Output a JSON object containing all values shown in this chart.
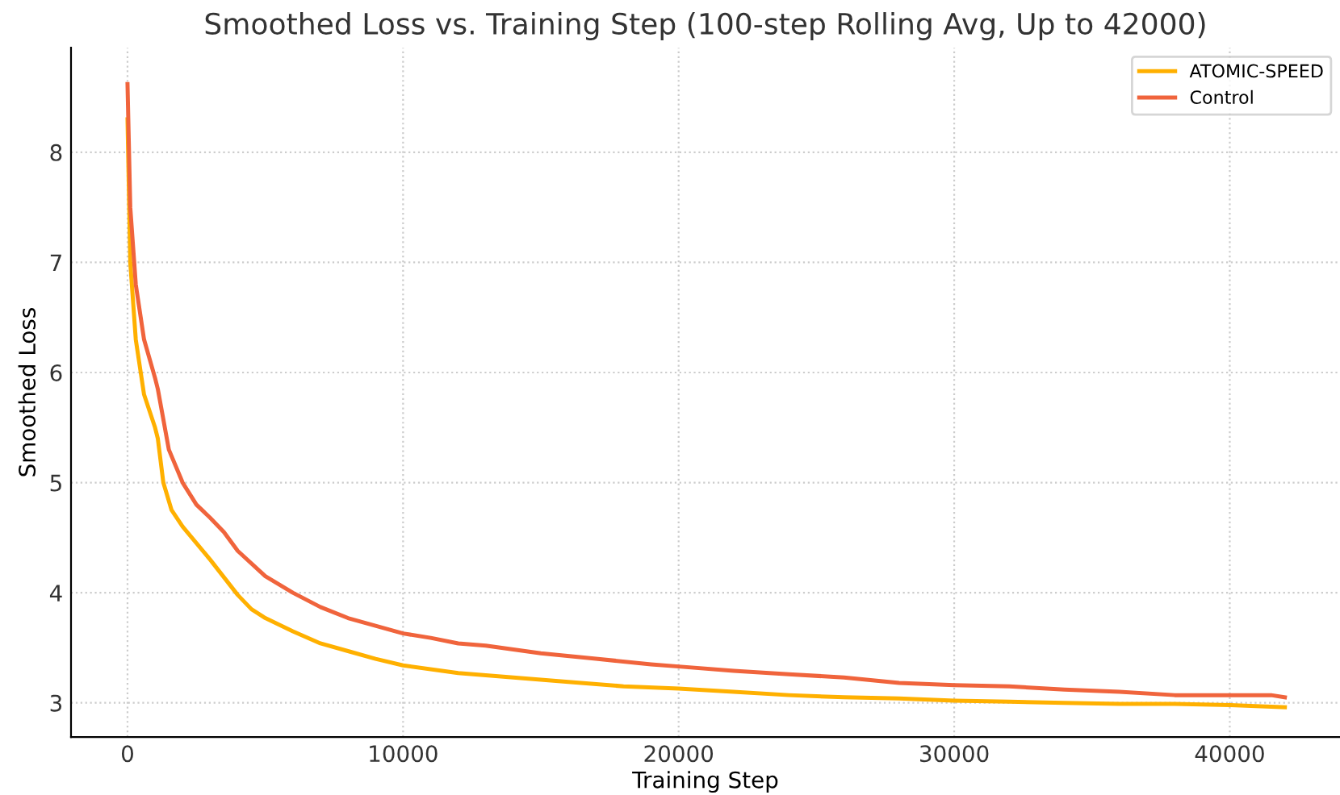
{
  "chart_data": {
    "type": "line",
    "title": "Smoothed Loss vs. Training Step (100-step Rolling Avg, Up to 42000)",
    "xlabel": "Training Step",
    "ylabel": "Smoothed Loss",
    "xlim": [
      -2050,
      44000
    ],
    "xticks": [
      0,
      10000,
      20000,
      30000,
      40000
    ],
    "ylim": [
      2.69,
      8.95
    ],
    "yticks": [
      3,
      4,
      5,
      6,
      7,
      8
    ],
    "grid": true,
    "legend": "top right",
    "line_style": "solid",
    "marker": "none",
    "series": [
      {
        "name": "ATOMIC-SPEED",
        "color": "#ffb000",
        "x": [
          0,
          100,
          300,
          600,
          1000,
          1100,
          1300,
          1600,
          2000,
          3000,
          4000,
          4500,
          5000,
          6000,
          7000,
          8000,
          9000,
          10000,
          12000,
          14000,
          16000,
          18000,
          20000,
          22000,
          24000,
          26000,
          28000,
          30000,
          32000,
          34000,
          36000,
          38000,
          40000,
          42000
        ],
        "values": [
          8.3,
          7.0,
          6.3,
          5.8,
          5.5,
          5.4,
          5.0,
          4.75,
          4.6,
          4.3,
          3.98,
          3.85,
          3.77,
          3.65,
          3.54,
          3.47,
          3.4,
          3.34,
          3.27,
          3.23,
          3.19,
          3.15,
          3.13,
          3.1,
          3.07,
          3.05,
          3.04,
          3.02,
          3.01,
          3.0,
          2.99,
          2.99,
          2.98,
          2.96
        ]
      },
      {
        "name": "Control",
        "color": "#f0643c",
        "x": [
          0,
          100,
          300,
          600,
          1000,
          1100,
          1500,
          2000,
          2500,
          3000,
          3500,
          4000,
          5000,
          6000,
          7000,
          8000,
          9000,
          10000,
          11000,
          12000,
          13000,
          15000,
          17000,
          19000,
          20000,
          22000,
          24000,
          26000,
          28000,
          30000,
          32000,
          34000,
          36000,
          38000,
          40000,
          41500,
          42000
        ],
        "values": [
          8.62,
          7.5,
          6.8,
          6.3,
          5.95,
          5.85,
          5.3,
          5.0,
          4.8,
          4.68,
          4.55,
          4.38,
          4.15,
          4.0,
          3.87,
          3.77,
          3.7,
          3.63,
          3.59,
          3.54,
          3.52,
          3.45,
          3.4,
          3.35,
          3.33,
          3.29,
          3.26,
          3.23,
          3.18,
          3.16,
          3.15,
          3.12,
          3.1,
          3.07,
          3.07,
          3.07,
          3.05
        ]
      }
    ]
  }
}
